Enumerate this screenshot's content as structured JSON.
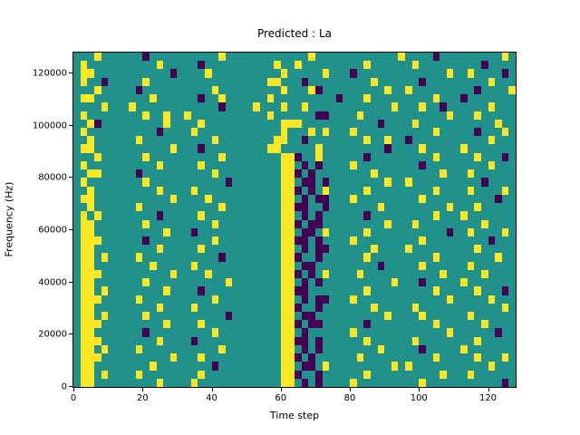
{
  "chart_data": {
    "type": "heatmap",
    "title": "Predicted : La",
    "xlabel": "Time step",
    "ylabel": "Frequency (Hz)",
    "xlim": [
      0,
      128
    ],
    "ylim": [
      0,
      128000
    ],
    "x_ticks": [
      0,
      20,
      40,
      60,
      80,
      100,
      120
    ],
    "y_ticks": [
      0,
      20000,
      40000,
      60000,
      80000,
      100000,
      120000
    ],
    "legend": "none",
    "grid_on": false,
    "grid_cols": 64,
    "grid_rows": 40,
    "cell_encoding": {
      ".": "background",
      "Y": "high",
      "P": "low"
    },
    "colors": {
      ".": "#21918c",
      "Y": "#fde725",
      "P": "#440154"
    },
    "grid": [
      [
        "...Y....",
        "..P.....",
        ".....Y..",
        "........",
        "..Y.....",
        ".......Y",
        "....P...",
        "......Y."
      ],
      [
        ".Y......",
        "....Y...",
        "..P.....",
        ".....Y..",
        "Y.......",
        "..Y.....",
        ".Y......",
        "...P...."
      ],
      [
        ".YY.....",
        "......P.",
        "...Y....",
        "......Y.",
        "....Y...",
        "P.......",
        "......Y.",
        ".Y....P."
      ],
      [
        ".Y..P...",
        "..Y.....",
        "........",
        "....YY..",
        ".P......",
        "...Y....",
        "..P.....",
        "....Y..."
      ],
      [
        "...Y....",
        ".P......",
        "....Y...",
        "......Y.",
        "..YP....",
        ".....Y..",
        "Y.......",
        "..P....Y"
      ],
      [
        ".YY.....",
        "...Y....",
        "..P..Y..",
        "....Y...",
        "......P.",
        "..Y.....",
        "....Y...",
        "P......."
      ],
      [
        "....Y...",
        "Y.......",
        ".....P..",
        "..Y...Y.",
        ".Y......",
        "......Y.",
        "..Y..P..",
        "....Y..."
      ],
      [
        ".Y......",
        "..Y..Y..",
        "Y.......",
        "....Y...",
        "...PP...",
        ".Y......",
        "......Y.",
        "..Y....."
      ],
      [
        "..YP....",
        ".....Y..",
        "..Y.....",
        "......YY",
        "Y.......",
        "....P...",
        ".Y......",
        ".....Y.."
      ],
      [
        ".Y......",
        "....P...",
        ".Y......",
        "......Y.",
        "..Y.Y...",
        "Y.......",
        "....Y...",
        "..P...Y."
      ],
      [
        "..Y.....",
        ".Y......",
        "....Y...",
        ".....YY.",
        ".P......",
        "..Y..Y..",
        "P.......",
        "....Y..."
      ],
      [
        ".YY.....",
        "......Y.",
        "..P.....",
        "....YY..",
        "...Y....",
        ".....P..",
        "..Y.....",
        "Y......."
      ],
      [
        "...Y....",
        "..Y.....",
        ".....Y..",
        "......YY",
        "P..Y....",
        "..P.....",
        "....Y...",
        "..Y...P."
      ],
      [
        ".Y......",
        "....Y...",
        "..Y.....",
        "......YY",
        ".P.P....",
        "Y.......",
        "..P.....",
        "....Y..."
      ],
      [
        "..YY....",
        ".P......",
        "....Y...",
        "......YY",
        "P.P.....",
        "...Y....",
        ".....Y..",
        ".Y......"
      ],
      [
        ".Y......",
        "..Y.....",
        "......P.",
        "......YY",
        ".PP.P...",
        ".....Y..",
        "Y.......",
        "...P...."
      ],
      [
        "..Y.....",
        "....Y...",
        ".Y......",
        "......YY",
        "P.P.Y...",
        "..Y.....",
        "....Y...",
        ".Y....Y."
      ],
      [
        ".YY.....",
        "......Y.",
        "...Y....",
        "......YY",
        ".P.PP...",
        "Y.......",
        "..Y.....",
        ".....P.."
      ],
      [
        "..Y.....",
        ".Y......",
        ".....Y..",
        "......YY",
        "PP..P...",
        "....Y...",
        "......Y.",
        "..Y....."
      ],
      [
        ".Y.Y....",
        "....P...",
        "..Y.....",
        "......YY",
        ".P.P....",
        "..P.....",
        "....Y...",
        "Y......."
      ],
      [
        ".YY.....",
        "..Y.....",
        "....Y...",
        "......YY",
        "P.PP....",
        ".....Y..",
        ".Y......",
        "...Y...."
      ],
      [
        ".YY.....",
        ".....Y..",
        ".P......",
        "......YY",
        ".PP.Y...",
        "..Y.....",
        "......P.",
        ".Y....Y."
      ],
      [
        ".YYY....",
        "..P.....",
        "....Y...",
        "......YY",
        "PP.P....",
        "Y.......",
        "..Y.....",
        "....P..."
      ],
      [
        ".YY.....",
        "....Y...",
        "..Y.....",
        "......YY",
        ".P.PP...",
        "...Y....",
        "Y.......",
        "..Y....."
      ],
      [
        ".YY.Y...",
        ".Y......",
        ".....P..",
        "......YY",
        "P..P....",
        "..Y.....",
        "....Y...",
        ".....Y.."
      ],
      [
        ".YY.....",
        "...Y....",
        ".Y......",
        "......YY",
        ".PP.....",
        "....P...",
        "..Y.....",
        ".Y......"
      ],
      [
        ".YYY....",
        "......Y.",
        "...Y....",
        "......YY",
        "P.P.Y...",
        ".Y......",
        ".....Y..",
        "...Y...."
      ],
      [
        ".YY.....",
        "..Y.....",
        "......Y.",
        "......YY",
        ".P.P....",
        "......Y.",
        "..P.....",
        "Y......."
      ],
      [
        ".YY.Y...",
        ".....Y..",
        "..P.....",
        "......YY",
        "PP......",
        "..Y.....",
        "....Y...",
        "..Y...P."
      ],
      [
        ".YYY....",
        ".Y......",
        "....Y...",
        "......YY",
        ".P.PP...",
        "Y.......",
        "......Y.",
        "....Y..."
      ],
      [
        ".YY.....",
        "....Y...",
        ".Y......",
        "......YY",
        "P..P....",
        "...Y....",
        ".Y......",
        "......Y."
      ],
      [
        ".YY.Y...",
        "..Y.....",
        "......P.",
        "......YY",
        ".PP.....",
        ".....Y..",
        "..Y.....",
        ".Y......"
      ],
      [
        ".YYY....",
        ".....Y..",
        "..Y.....",
        "......YY",
        "P.PP....",
        "..P.....",
        "....Y...",
        "...Y...."
      ],
      [
        ".YY.....",
        "..P.....",
        "....Y...",
        "......YY",
        ".P......",
        "Y.......",
        "......Y.",
        ".....P.."
      ],
      [
        ".YYY....",
        "....Y...",
        ".P......",
        "......YY",
        "PP.P....",
        "..Y.....",
        ".Y......",
        "..Y....."
      ],
      [
        ".YY.Y...",
        ".Y......",
        ".....Y..",
        "......YY",
        ".P.P....",
        "....Y...",
        "..P.....",
        "Y......."
      ],
      [
        ".YYY....",
        "......Y.",
        "..Y.....",
        "......YY",
        "P.P.....",
        ".Y......",
        "....Y...",
        "..Y...Y."
      ],
      [
        ".YY.....",
        "...Y....",
        "....P...",
        "......YY",
        ".PP.Y...",
        "......Y.",
        "Y.......",
        "....Y..."
      ],
      [
        ".YY.Y...",
        ".Y......",
        "..Y.....",
        "......YY",
        "P..P....",
        "..Y.....",
        ".....Y..",
        ".Y......"
      ],
      [
        ".YY.....",
        "....Y...",
        ".Y......",
        "......YY",
        ".P.P....",
        "Y.......",
        "..Y.....",
        "......P."
      ]
    ]
  }
}
